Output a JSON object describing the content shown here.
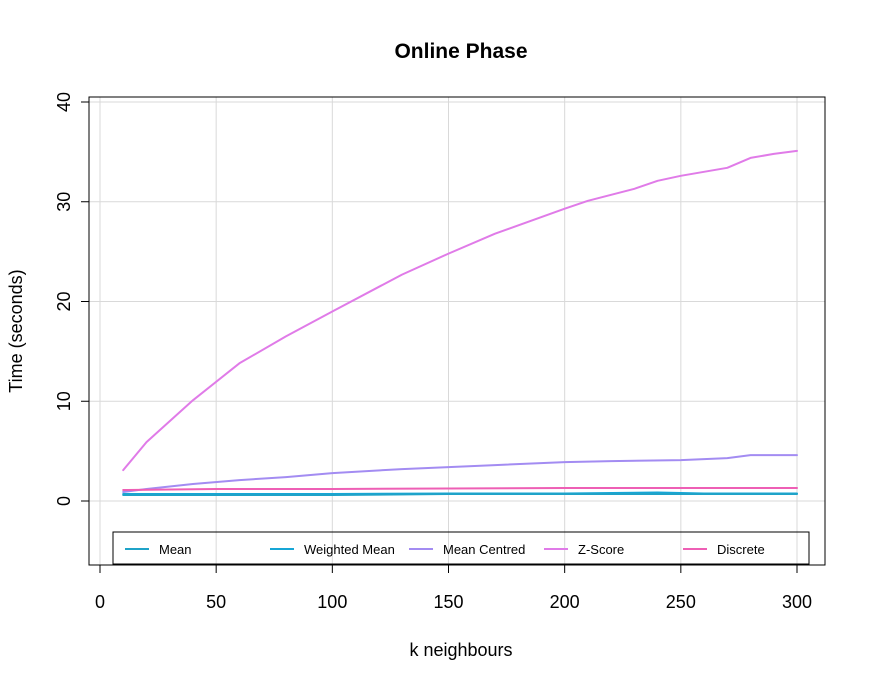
{
  "chart_data": {
    "type": "line",
    "title": "Online Phase",
    "xlabel": "k neighbours",
    "ylabel": "Time (seconds)",
    "xlim": [
      0,
      300
    ],
    "ylim": [
      -5,
      40
    ],
    "x_ticks": [
      0,
      50,
      100,
      150,
      200,
      250,
      300
    ],
    "y_ticks": [
      0,
      10,
      20,
      30,
      40
    ],
    "grid": true,
    "legend_position": "bottom",
    "series": [
      {
        "name": "Mean",
        "color": "#1fa3c8",
        "x": [
          10,
          50,
          100,
          150,
          200,
          250,
          300
        ],
        "y": [
          0.6,
          0.6,
          0.6,
          0.7,
          0.7,
          0.7,
          0.7
        ]
      },
      {
        "name": "Weighted Mean",
        "color": "#17a6d6",
        "x": [
          10,
          50,
          100,
          150,
          200,
          240,
          250,
          260,
          300
        ],
        "y": [
          0.7,
          0.7,
          0.7,
          0.75,
          0.75,
          0.85,
          0.8,
          0.75,
          0.75
        ]
      },
      {
        "name": "Mean Centred",
        "color": "#a38cf2",
        "x": [
          10,
          20,
          40,
          60,
          80,
          100,
          130,
          150,
          170,
          200,
          220,
          250,
          270,
          280,
          290,
          300
        ],
        "y": [
          0.9,
          1.2,
          1.7,
          2.1,
          2.4,
          2.8,
          3.2,
          3.4,
          3.6,
          3.9,
          4.0,
          4.1,
          4.3,
          4.6,
          4.6,
          4.6
        ]
      },
      {
        "name": "Z-Score",
        "color": "#e07be8",
        "x": [
          10,
          20,
          40,
          60,
          80,
          100,
          130,
          150,
          170,
          200,
          210,
          230,
          240,
          250,
          270,
          280,
          290,
          300
        ],
        "y": [
          3.1,
          5.9,
          10.1,
          13.8,
          16.5,
          19.0,
          22.7,
          24.8,
          26.8,
          29.3,
          30.1,
          31.3,
          32.1,
          32.6,
          33.4,
          34.4,
          34.8,
          35.1
        ]
      },
      {
        "name": "Discrete",
        "color": "#ee5fb5",
        "x": [
          10,
          50,
          100,
          150,
          200,
          250,
          300
        ],
        "y": [
          1.1,
          1.2,
          1.2,
          1.25,
          1.3,
          1.3,
          1.3
        ]
      }
    ]
  }
}
